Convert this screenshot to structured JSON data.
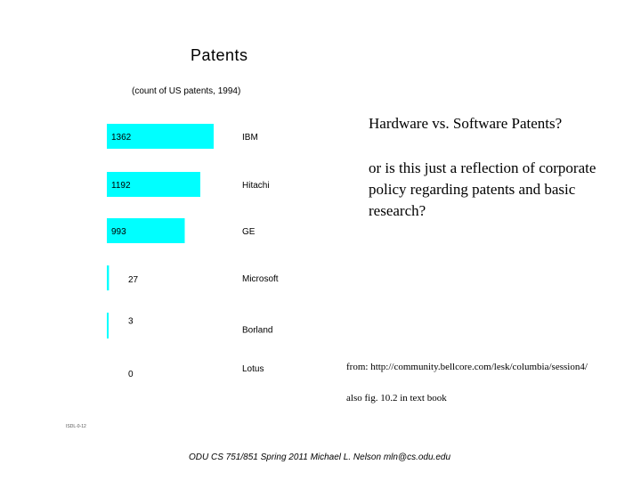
{
  "colors": {
    "bar": "#00FFFF",
    "text": "#000000",
    "background": "#FFFFFF"
  },
  "chart_data": {
    "type": "bar",
    "orientation": "horizontal",
    "title": "Patents",
    "subtitle": "(count of US patents, 1994)",
    "categories": [
      "IBM",
      "Hitachi",
      "GE",
      "Microsoft",
      "Borland",
      "Lotus"
    ],
    "values": [
      1362,
      1192,
      993,
      27,
      3,
      0
    ],
    "value_labels": [
      "1362",
      "1192",
      "993",
      "27",
      "3",
      "0"
    ],
    "grid": false,
    "legend": "none"
  },
  "slide": {
    "question": "Hardware vs. Software Patents?",
    "followup": "or is this just a reflection of corporate policy regarding patents and basic research?",
    "source": "from: http://community.bellcore.com/lesk/columbia/session4/",
    "reference": "also fig. 10.2 in text book",
    "tiny_label": "ISDL-0-12",
    "footer": "ODU CS 751/851 Spring 2011 Michael L. Nelson mln@cs.odu.edu"
  }
}
